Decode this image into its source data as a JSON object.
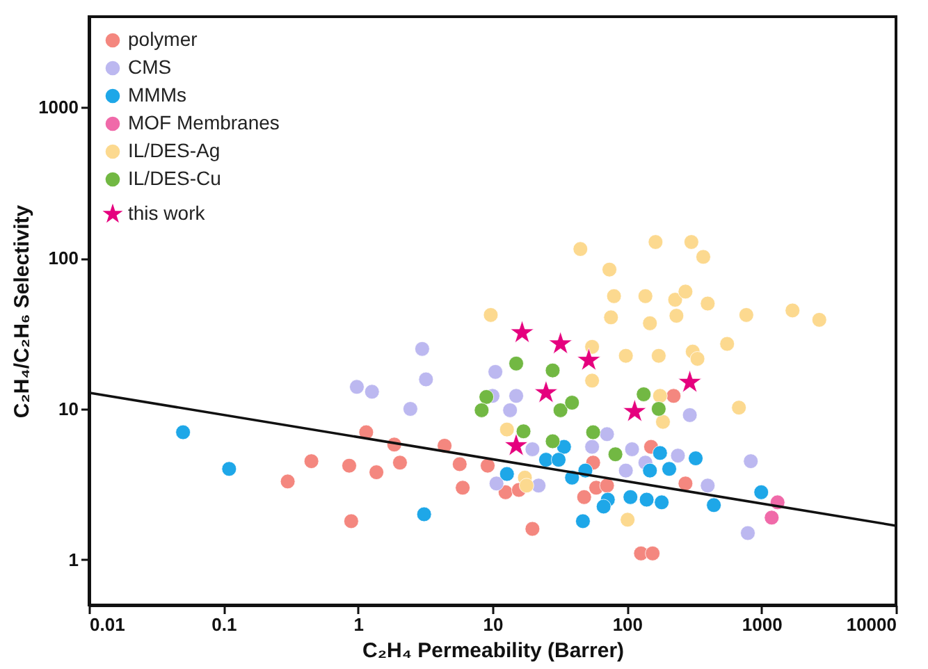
{
  "chart_data": {
    "type": "scatter",
    "xlabel": "C₂H₄ Permeability (Barrer)",
    "ylabel": "C₂H₄/C₂H₆ Selectivity",
    "log": "xy",
    "xlim": [
      0.01,
      10000
    ],
    "ylim": [
      0.5,
      4000
    ],
    "xticks": [
      0.01,
      0.1,
      1,
      10,
      100,
      1000,
      10000
    ],
    "yticks": [
      1,
      10,
      100,
      1000
    ],
    "grid": false,
    "legend": "top left",
    "marker": "circle",
    "series": [
      {
        "name": "polymer",
        "color": "#f4877f",
        "x": [
          0.3,
          0.45,
          0.86,
          0.89,
          1.15,
          1.37,
          1.86,
          2.05,
          4.4,
          5.7,
          6.0,
          9.2,
          12.5,
          15.7,
          19.8,
          48,
          59,
          71,
          56,
          151,
          222,
          272,
          127,
          155
        ],
        "values": [
          3.3,
          4.5,
          4.2,
          1.8,
          7.0,
          3.8,
          5.8,
          4.4,
          5.7,
          4.3,
          3.0,
          4.2,
          2.8,
          2.9,
          1.6,
          2.6,
          3.0,
          3.1,
          4.4,
          5.6,
          12.2,
          3.2,
          1.1,
          1.1
        ]
      },
      {
        "name": "CMS",
        "color": "#bcb8f0",
        "x": [
          0.98,
          1.27,
          2.45,
          3.0,
          3.2,
          10.5,
          15,
          13.5,
          10,
          293,
          71,
          19.8,
          55,
          109,
          239,
          832,
          137,
          98,
          10.7,
          22,
          398,
          791
        ],
        "values": [
          14,
          13,
          10,
          25,
          15.7,
          17.6,
          12.2,
          9.8,
          12.2,
          9.1,
          6.8,
          5.4,
          5.6,
          5.4,
          4.9,
          4.5,
          4.4,
          3.9,
          3.2,
          3.1,
          3.1,
          1.5
        ]
      },
      {
        "name": "MMMs",
        "color": "#1ea7e8",
        "x": [
          0.05,
          0.11,
          3.1,
          34,
          25,
          31,
          176,
          324,
          148,
          206,
          39,
          49,
          12.8,
          106,
          140,
          181,
          72,
          67,
          47,
          442,
          995
        ],
        "values": [
          7.0,
          4.0,
          2.0,
          5.6,
          4.6,
          4.6,
          5.1,
          4.7,
          3.9,
          4.0,
          3.5,
          3.9,
          3.7,
          2.6,
          2.5,
          2.4,
          2.5,
          2.25,
          1.8,
          2.3,
          2.8
        ]
      },
      {
        "name": "MOF Membranes",
        "color": "#f06aa9",
        "x": [
          1316,
          1190
        ],
        "values": [
          2.4,
          1.9
        ]
      },
      {
        "name": "IL/DES-Ag",
        "color": "#fcd98f",
        "x": [
          80,
          137,
          228,
          272,
          398,
          771,
          1700,
          2690,
          9.7,
          76,
          148,
          233,
          555,
          98,
          172,
          308,
          334,
          55,
          55,
          679,
          185,
          176,
          12.8,
          17.4,
          17.9,
          101,
          45,
          163,
          301,
          369,
          74
        ],
        "values": [
          56,
          56,
          53,
          60,
          50,
          42,
          45,
          39,
          42,
          40.5,
          37,
          41.5,
          27,
          22.5,
          22.5,
          24,
          21.5,
          25.8,
          15.4,
          10.2,
          8.2,
          12.2,
          7.3,
          3.5,
          3.1,
          1.84,
          115,
          128,
          128,
          102,
          84
        ]
      },
      {
        "name": "IL/DES-Cu",
        "color": "#72b843",
        "x": [
          15,
          28,
          9.0,
          8.3,
          32,
          39,
          133,
          172,
          17,
          56,
          28,
          82
        ],
        "values": [
          20,
          18,
          12,
          9.8,
          9.8,
          11,
          12.5,
          10,
          7.1,
          7.0,
          6.1,
          5.0
        ]
      },
      {
        "name": "this work",
        "color": "#e5007e",
        "marker": "star",
        "x": [
          16.6,
          32,
          52,
          25,
          293,
          114,
          15
        ],
        "values": [
          32,
          27,
          21,
          12.8,
          15,
          9.6,
          5.7
        ]
      },
      {
        "type": "line",
        "marker": "none",
        "color": "#111111",
        "x": [
          0.01,
          10000
        ],
        "values": [
          12.8,
          1.68
        ]
      }
    ]
  }
}
